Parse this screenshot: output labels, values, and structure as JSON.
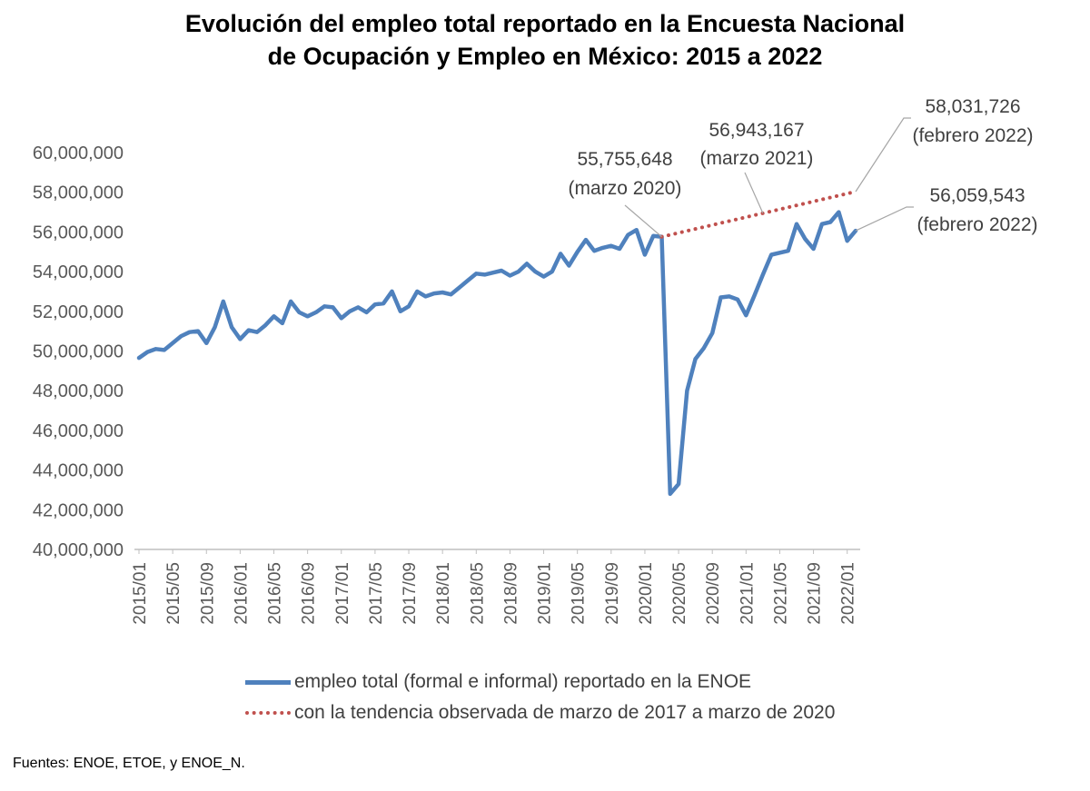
{
  "title_lines": [
    "Evolución del empleo total reportado en la Encuesta Nacional",
    "de Ocupación y Empleo en México: 2015 a 2022"
  ],
  "source": "Fuentes: ENOE, ETOE, y ENOE_N.",
  "colors": {
    "series_actual": "#4f81bd",
    "series_trend": "#c0504d",
    "axis": "#bfbfbf",
    "text": "#595959"
  },
  "chart_data": {
    "type": "line",
    "title": "Evolución del empleo total reportado en la Encuesta Nacional de Ocupación y Empleo en México: 2015 a 2022",
    "ylim": [
      40000000,
      60000000
    ],
    "yticks": [
      40000000,
      42000000,
      44000000,
      46000000,
      48000000,
      50000000,
      52000000,
      54000000,
      56000000,
      58000000,
      60000000
    ],
    "ytick_labels": [
      "40,000,000",
      "42,000,000",
      "44,000,000",
      "46,000,000",
      "48,000,000",
      "50,000,000",
      "52,000,000",
      "54,000,000",
      "56,000,000",
      "58,000,000",
      "60,000,000"
    ],
    "xtick_labels": [
      "2015/01",
      "2015/05",
      "2015/09",
      "2016/01",
      "2016/05",
      "2016/09",
      "2017/01",
      "2017/05",
      "2017/09",
      "2018/01",
      "2018/05",
      "2018/09",
      "2019/01",
      "2019/05",
      "2019/09",
      "2020/01",
      "2020/05",
      "2020/09",
      "2021/01",
      "2021/05",
      "2021/09",
      "2022/01"
    ],
    "grid": false,
    "legend_position": "bottom",
    "x": [
      "2015/01",
      "2015/02",
      "2015/03",
      "2015/04",
      "2015/05",
      "2015/06",
      "2015/07",
      "2015/08",
      "2015/09",
      "2015/10",
      "2015/11",
      "2015/12",
      "2016/01",
      "2016/02",
      "2016/03",
      "2016/04",
      "2016/05",
      "2016/06",
      "2016/07",
      "2016/08",
      "2016/09",
      "2016/10",
      "2016/11",
      "2016/12",
      "2017/01",
      "2017/02",
      "2017/03",
      "2017/04",
      "2017/05",
      "2017/06",
      "2017/07",
      "2017/08",
      "2017/09",
      "2017/10",
      "2017/11",
      "2017/12",
      "2018/01",
      "2018/02",
      "2018/03",
      "2018/04",
      "2018/05",
      "2018/06",
      "2018/07",
      "2018/08",
      "2018/09",
      "2018/10",
      "2018/11",
      "2018/12",
      "2019/01",
      "2019/02",
      "2019/03",
      "2019/04",
      "2019/05",
      "2019/06",
      "2019/07",
      "2019/08",
      "2019/09",
      "2019/10",
      "2019/11",
      "2019/12",
      "2020/01",
      "2020/02",
      "2020/03",
      "2020/04",
      "2020/05",
      "2020/06",
      "2020/07",
      "2020/08",
      "2020/09",
      "2020/10",
      "2020/11",
      "2020/12",
      "2021/01",
      "2021/02",
      "2021/03",
      "2021/04",
      "2021/05",
      "2021/06",
      "2021/07",
      "2021/08",
      "2021/09",
      "2021/10",
      "2021/11",
      "2021/12",
      "2022/01",
      "2022/02"
    ],
    "series": [
      {
        "name": "empleo total (formal e informal) reportado en la ENOE",
        "style": "solid",
        "values": [
          49650000,
          49950000,
          50100000,
          50050000,
          50400000,
          50750000,
          50950000,
          51000000,
          50400000,
          51200000,
          52500000,
          51200000,
          50600000,
          51050000,
          50950000,
          51300000,
          51750000,
          51400000,
          52500000,
          51950000,
          51750000,
          51950000,
          52250000,
          52200000,
          51650000,
          52000000,
          52200000,
          51950000,
          52350000,
          52400000,
          53000000,
          52000000,
          52250000,
          53000000,
          52750000,
          52900000,
          52950000,
          52850000,
          53200000,
          53550000,
          53900000,
          53850000,
          53950000,
          54050000,
          53800000,
          54000000,
          54400000,
          54000000,
          53750000,
          54000000,
          54900000,
          54300000,
          55000000,
          55600000,
          55050000,
          55200000,
          55300000,
          55150000,
          55850000,
          56100000,
          54850000,
          55800000,
          55755648,
          42800000,
          43300000,
          48000000,
          49600000,
          50150000,
          50900000,
          52700000,
          52750000,
          52600000,
          51800000,
          52800000,
          53850000,
          54850000,
          54950000,
          55050000,
          56400000,
          55650000,
          55150000,
          56400000,
          56500000,
          57000000,
          55550000,
          56059543
        ]
      },
      {
        "name": "con la tendencia observada de marzo de 2017 a marzo de 2020",
        "style": "dotted",
        "x_start": "2020/03",
        "x_end": "2022/02",
        "values_start_end": [
          55755648,
          58031726
        ]
      }
    ],
    "annotations": [
      {
        "value": "55,755,648",
        "date": "(marzo 2020)"
      },
      {
        "value": "56,943,167",
        "date": "(marzo 2021)"
      },
      {
        "value": "58,031,726",
        "date": "(febrero 2022)"
      },
      {
        "value": "56,059,543",
        "date": "(febrero 2022)"
      }
    ]
  }
}
